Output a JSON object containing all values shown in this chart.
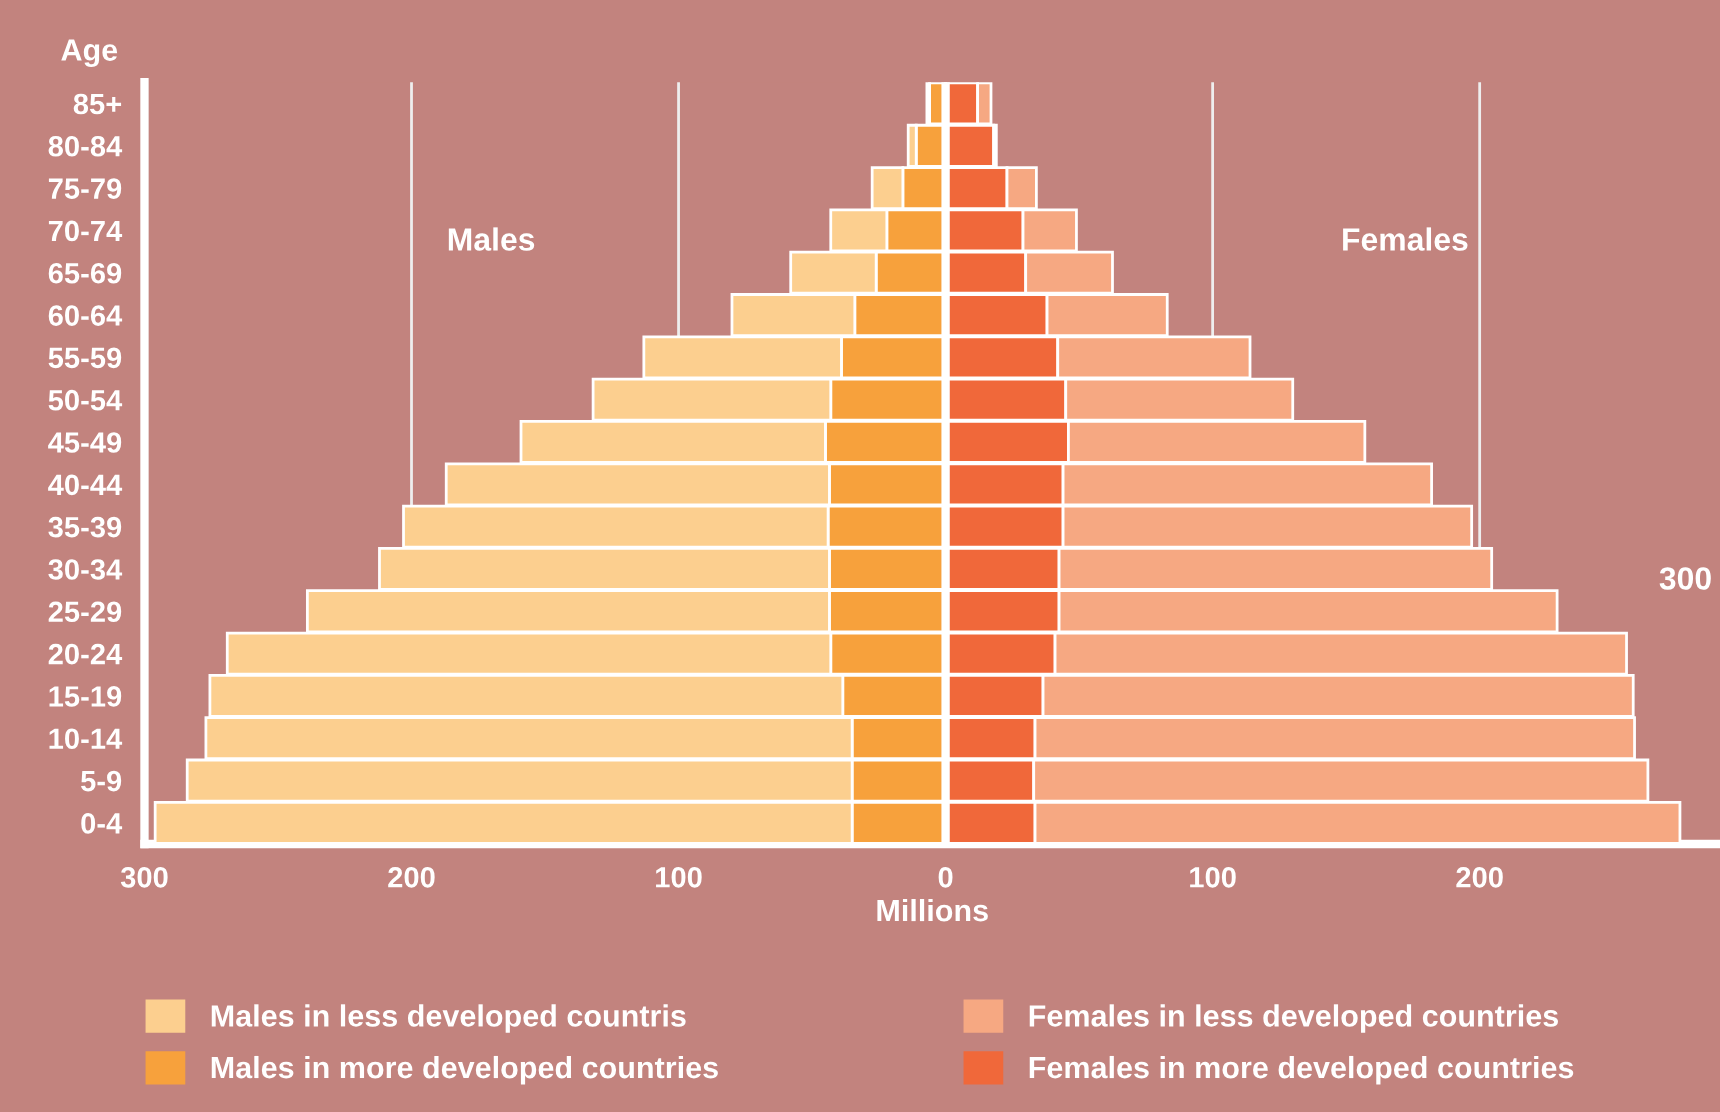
{
  "chart_data": {
    "type": "bar",
    "orientation": "horizontal",
    "stacked": true,
    "categories": [
      "85+",
      "80-84",
      "75-79",
      "70-74",
      "65-69",
      "60-64",
      "55-59",
      "50-54",
      "45-49",
      "40-44",
      "35-39",
      "30-34",
      "25-29",
      "20-24",
      "15-19",
      "10-14",
      "5-9",
      "0-4"
    ],
    "series": [
      {
        "name": "Males in more developed countries",
        "color": "#f7a13c",
        "values": [
          -6,
          -11,
          -16,
          -22,
          -26,
          -34,
          -39,
          -43,
          -45,
          -43.5,
          -44,
          -43.5,
          -43.5,
          -43,
          -38.5,
          -35,
          -35,
          -35
        ]
      },
      {
        "name": "Males in less developed countris",
        "color": "#fccf8f",
        "values": [
          -1,
          -3,
          -11.5,
          -21,
          -32,
          -46,
          -74,
          -89,
          -114,
          -143.5,
          -159,
          -168.5,
          -195.5,
          -226,
          -237,
          -242,
          -249,
          -261
        ]
      },
      {
        "name": "Females in more developed countries",
        "color": "#f0683a",
        "values": [
          12,
          18,
          23,
          29,
          30,
          38,
          42,
          45,
          46,
          44,
          44,
          42.5,
          42.5,
          41,
          36.5,
          33.5,
          33,
          33.5
        ]
      },
      {
        "name": "Females in less developed countries",
        "color": "#f6a882",
        "values": [
          5,
          1,
          11,
          20,
          32.5,
          45,
          72,
          85,
          111,
          138,
          153,
          162,
          186.5,
          214,
          221,
          224.5,
          230,
          241.5
        ]
      }
    ],
    "xlim": [
      -300,
      290
    ],
    "xticks": [
      {
        "value": -300,
        "label": "300"
      },
      {
        "value": -200,
        "label": "200"
      },
      {
        "value": -100,
        "label": "100"
      },
      0,
      100,
      200
    ],
    "xlabel": "Millions",
    "ylabel": "Age",
    "grid": "x",
    "legend": "bottom",
    "annotations": [
      "Males",
      "Females",
      "300"
    ]
  }
}
